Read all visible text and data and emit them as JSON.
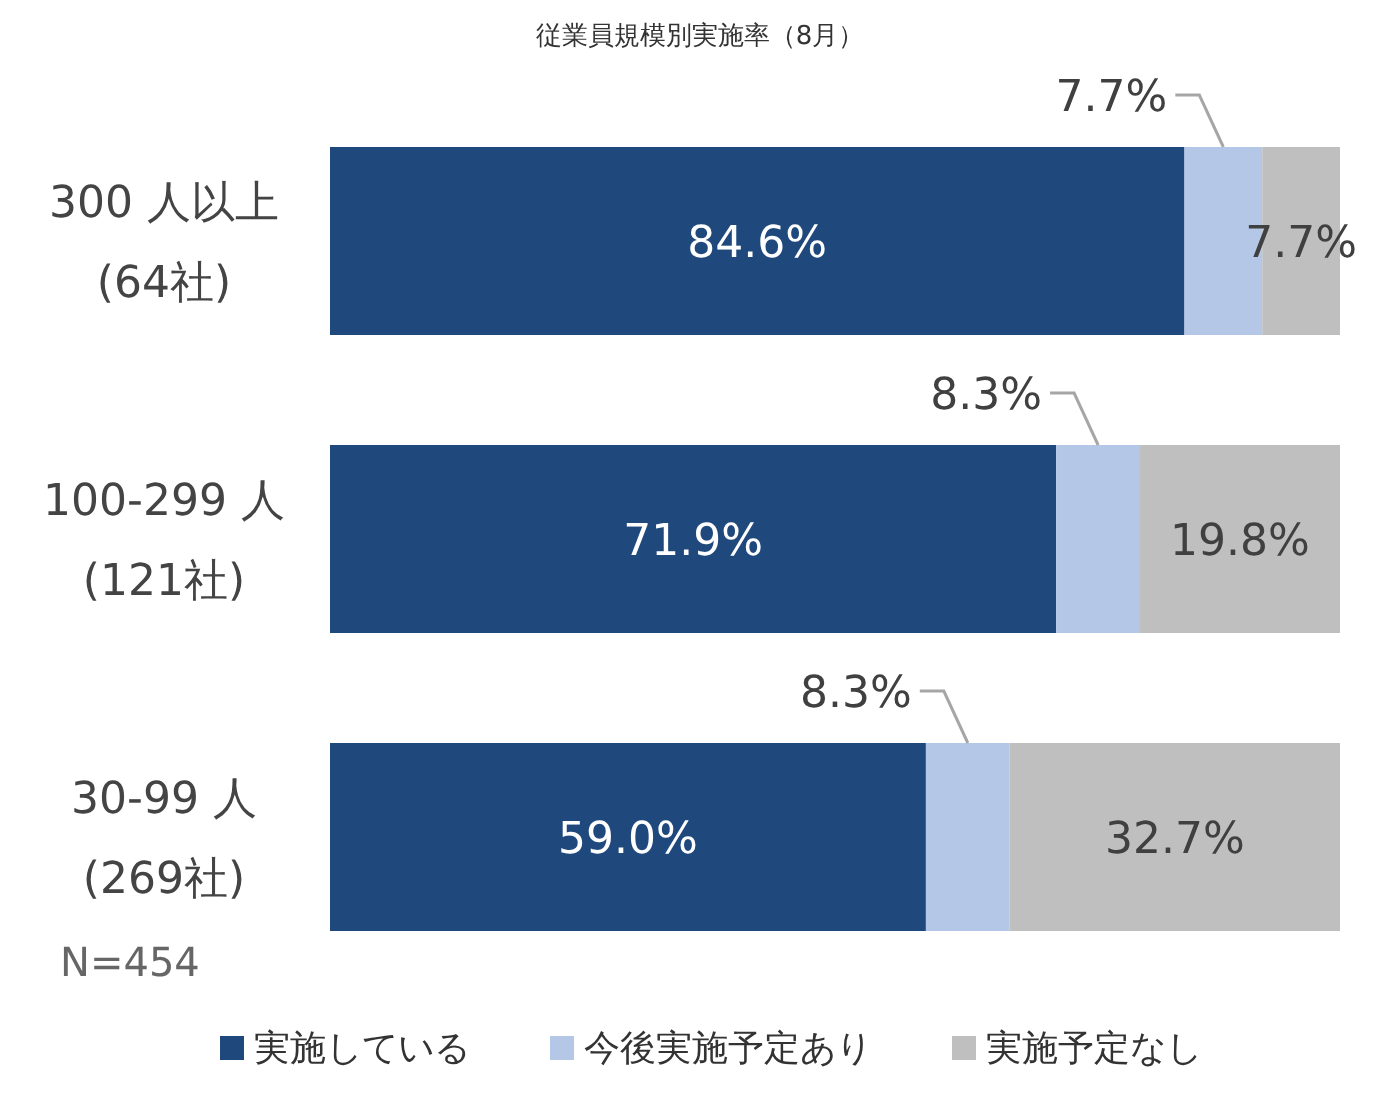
{
  "chart_data": {
    "type": "bar",
    "orientation": "horizontal",
    "stacked": true,
    "legend": "bottom",
    "title": "従業員規模別実施率（8月）",
    "categories": [
      "300 人以上\n(64社)",
      "100-299 人\n(121社)",
      "30-99 人\n(269社)"
    ],
    "series": [
      {
        "name": "実施している",
        "color": "#1f497d",
        "values": [
          84.6,
          71.9,
          59.0
        ],
        "value_labels": [
          "84.6%",
          "71.9%",
          "59.0%"
        ]
      },
      {
        "name": "今後実施予定あり",
        "color": "#b4c7e7",
        "values": [
          7.7,
          8.3,
          8.3
        ],
        "value_labels": [
          "7.7%",
          "8.3%",
          "8.3%"
        ]
      },
      {
        "name": "実施予定なし",
        "color": "#bfbfbf",
        "values": [
          7.7,
          19.8,
          32.7
        ],
        "value_labels": [
          "7.7%",
          "19.8%",
          "32.7%"
        ]
      }
    ],
    "annotations": [
      "N=454"
    ]
  }
}
